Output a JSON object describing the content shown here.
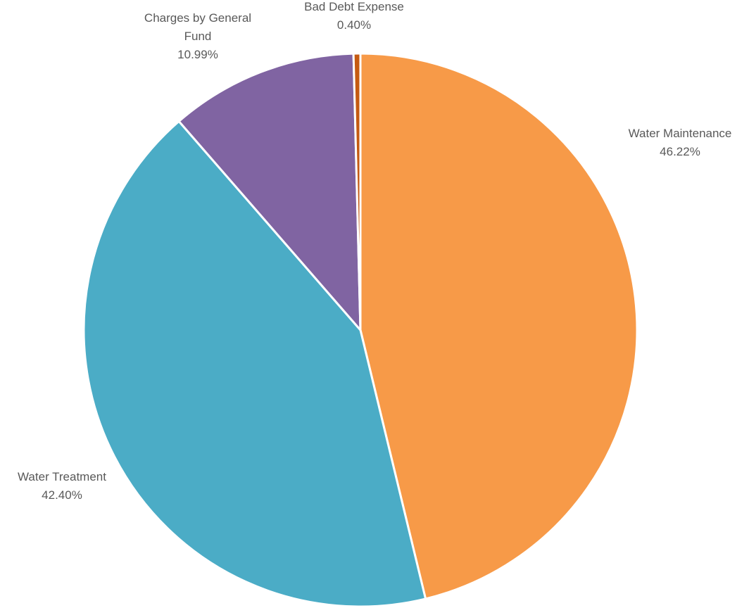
{
  "chart_data": {
    "type": "pie",
    "title": "",
    "start_angle_deg": 0,
    "direction": "clockwise",
    "slices": [
      {
        "name": "Water Maintenance",
        "value": 46.22,
        "label_lines": [
          "Water Maintenance",
          "46.22%"
        ],
        "color": "#F79A48"
      },
      {
        "name": "Water Treatment",
        "value": 42.4,
        "label_lines": [
          "Water Treatment",
          "42.40%"
        ],
        "color": "#4BACC6"
      },
      {
        "name": "Charges by General Fund",
        "value": 10.99,
        "label_lines": [
          "Charges by General",
          "Fund",
          "10.99%"
        ],
        "color": "#8064A2"
      },
      {
        "name": "Bad Debt Expense",
        "value": 0.4,
        "label_lines": [
          "Bad Debt Expense",
          "0.40%"
        ],
        "color": "#C55A11"
      }
    ],
    "legend": "none",
    "data_labels": "outside"
  }
}
